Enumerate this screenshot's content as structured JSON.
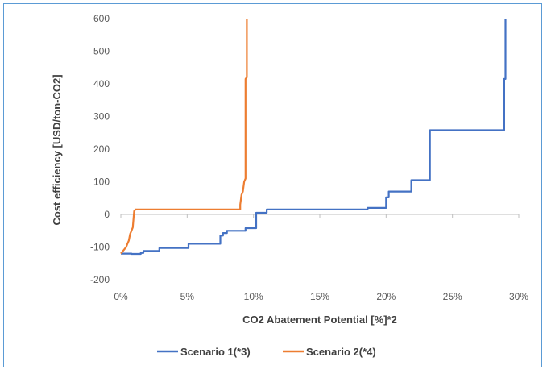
{
  "chart_data": {
    "type": "line",
    "title": "",
    "xlabel": "CO2 Abatement Potential [%]*2",
    "ylabel": "Cost efficiency [USD/ton-CO2]",
    "xlim": [
      0,
      30
    ],
    "ylim": [
      -200,
      600
    ],
    "x_ticks": [
      "0%",
      "5%",
      "10%",
      "15%",
      "20%",
      "25%",
      "30%"
    ],
    "y_ticks": [
      "-200",
      "-100",
      "0",
      "100",
      "200",
      "300",
      "400",
      "500",
      "600"
    ],
    "grid": false,
    "legend_position": "bottom",
    "series": [
      {
        "name": "Scenario 1(*3)",
        "color": "#4472c4",
        "points": [
          [
            0,
            -120
          ],
          [
            0.8,
            -120
          ],
          [
            0.8,
            -121
          ],
          [
            1.5,
            -121
          ],
          [
            1.5,
            -118
          ],
          [
            1.7,
            -118
          ],
          [
            1.7,
            -112
          ],
          [
            2.9,
            -112
          ],
          [
            2.9,
            -103
          ],
          [
            5.1,
            -103
          ],
          [
            5.1,
            -90
          ],
          [
            7.5,
            -90
          ],
          [
            7.5,
            -65
          ],
          [
            7.7,
            -65
          ],
          [
            7.7,
            -57
          ],
          [
            8.0,
            -57
          ],
          [
            8.0,
            -50
          ],
          [
            9.4,
            -50
          ],
          [
            9.4,
            -42
          ],
          [
            10.2,
            -42
          ],
          [
            10.2,
            5
          ],
          [
            11.0,
            5
          ],
          [
            11.0,
            15
          ],
          [
            18.6,
            15
          ],
          [
            18.6,
            20
          ],
          [
            20.0,
            20
          ],
          [
            20.0,
            52
          ],
          [
            20.2,
            52
          ],
          [
            20.2,
            70
          ],
          [
            21.9,
            70
          ],
          [
            21.9,
            105
          ],
          [
            23.3,
            105
          ],
          [
            23.3,
            258
          ],
          [
            28.9,
            258
          ],
          [
            28.9,
            415
          ],
          [
            29.0,
            415
          ],
          [
            29.0,
            600
          ]
        ]
      },
      {
        "name": "Scenario 2(*4)",
        "color": "#ed7d31",
        "points": [
          [
            0,
            -120
          ],
          [
            0.2,
            -110
          ],
          [
            0.4,
            -100
          ],
          [
            0.5,
            -90
          ],
          [
            0.6,
            -80
          ],
          [
            0.7,
            -60
          ],
          [
            0.8,
            -50
          ],
          [
            0.9,
            -40
          ],
          [
            1.0,
            10
          ],
          [
            1.1,
            15
          ],
          [
            9.0,
            15
          ],
          [
            9.0,
            30
          ],
          [
            9.1,
            60
          ],
          [
            9.2,
            70
          ],
          [
            9.3,
            100
          ],
          [
            9.4,
            110
          ],
          [
            9.4,
            415
          ],
          [
            9.5,
            420
          ],
          [
            9.5,
            600
          ]
        ]
      }
    ]
  }
}
